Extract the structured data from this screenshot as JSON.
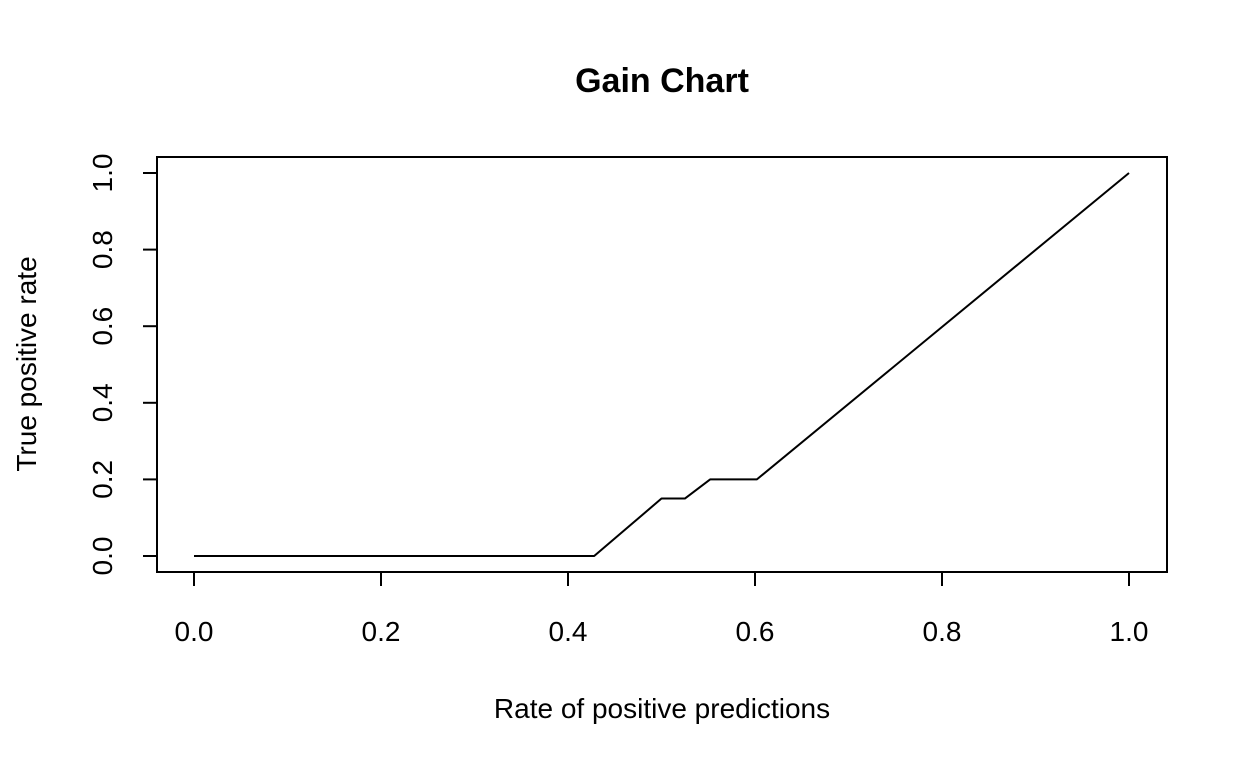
{
  "chart_data": {
    "type": "line",
    "title": "Gain Chart",
    "xlabel": "Rate of positive predictions",
    "ylabel": "True positive rate",
    "xlim": [
      0.0,
      1.0
    ],
    "ylim": [
      0.0,
      1.0
    ],
    "xticks": [
      "0.0",
      "0.2",
      "0.4",
      "0.6",
      "0.8",
      "1.0"
    ],
    "yticks": [
      "0.0",
      "0.2",
      "0.4",
      "0.6",
      "0.8",
      "1.0"
    ],
    "grid": false,
    "legend": "none",
    "series": [
      {
        "color": "#000000",
        "x": [
          0.0,
          0.428,
          0.5,
          0.525,
          0.552,
          0.602,
          1.0
        ],
        "y": [
          0.0,
          0.0,
          0.15,
          0.15,
          0.2,
          0.2,
          1.0
        ]
      }
    ]
  }
}
